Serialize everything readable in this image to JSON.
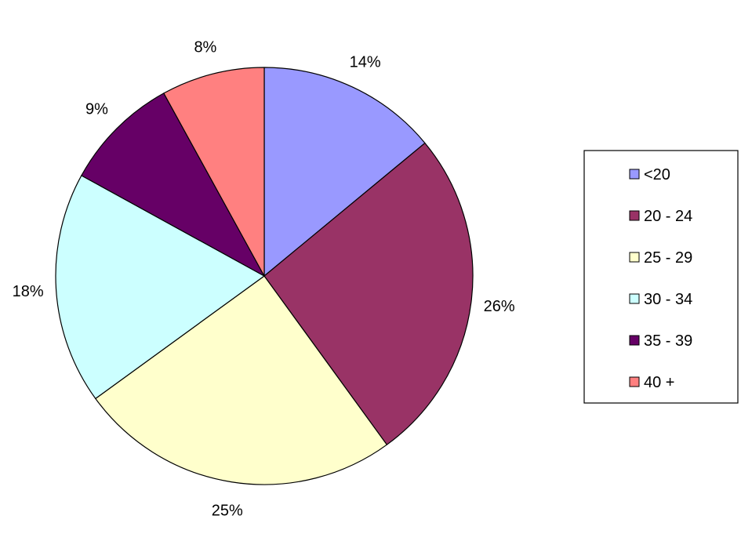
{
  "chart_data": {
    "type": "pie",
    "title": "",
    "categories": [
      "<20",
      "20 - 24",
      "25 - 29",
      "30 - 34",
      "35 - 39",
      "40 +"
    ],
    "values": [
      14,
      26,
      25,
      18,
      9,
      8
    ],
    "labels": [
      "14%",
      "26%",
      "25%",
      "18%",
      "9%",
      "8%"
    ],
    "colors": [
      "#9999FF",
      "#993366",
      "#FFFFCC",
      "#CCFFFF",
      "#660066",
      "#FF8080"
    ],
    "start_angle": "12 o'clock",
    "direction": "clockwise",
    "legend": {
      "position": "right",
      "entries": [
        "<20",
        "20 - 24",
        "25 - 29",
        "30 - 34",
        "35 - 39",
        "40 +"
      ]
    }
  }
}
